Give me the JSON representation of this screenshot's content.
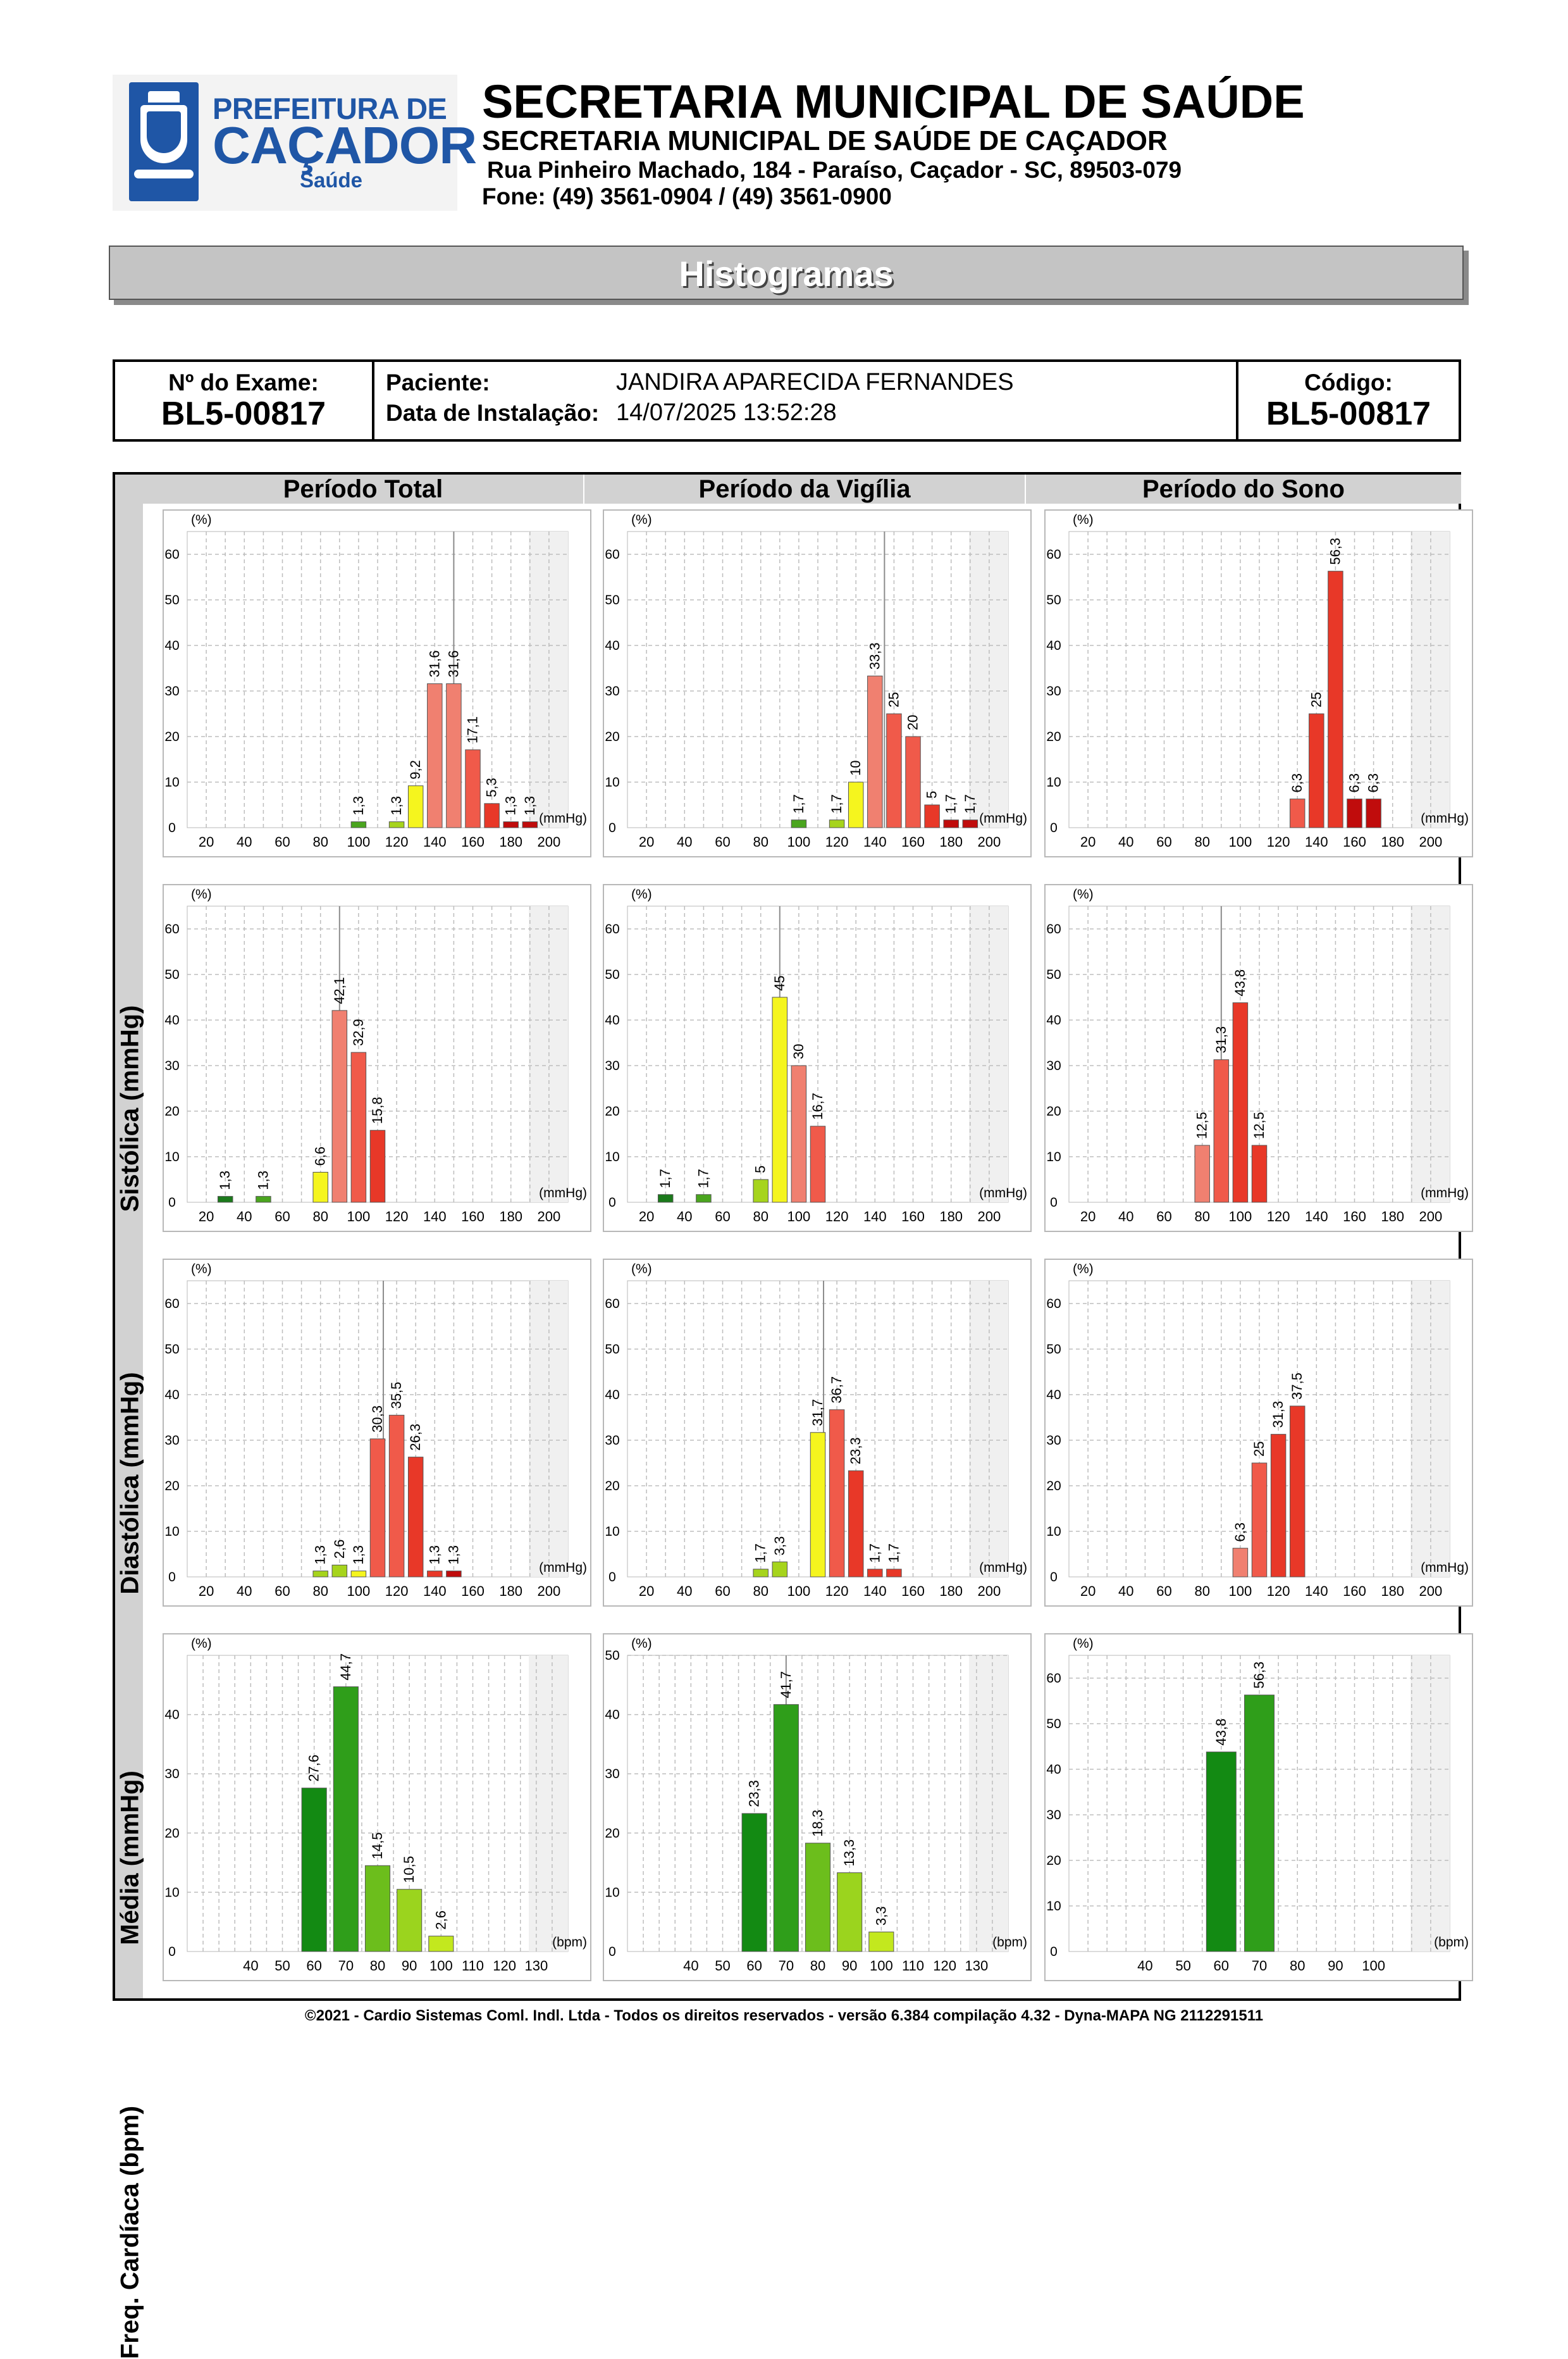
{
  "header": {
    "logo": {
      "line1": "PREFEITURA DE",
      "line2": "CAÇADOR",
      "line3": "Saúde"
    },
    "title": "SECRETARIA MUNICIPAL DE SAÚDE",
    "subtitle": "SECRETARIA MUNICIPAL DE SAÚDE DE CAÇADOR",
    "address": "Rua Pinheiro Machado, 184 - Paraíso, Caçador - SC, 89503-079",
    "phone": "Fone: (49) 3561-0904  / (49) 3561-0900"
  },
  "banner": "Histogramas",
  "exam": {
    "exam_label": "Nº do Exame:",
    "exam_number": "BL5-00817",
    "patient_label": "Paciente:",
    "patient_name": "JANDIRA APARECIDA FERNANDES",
    "install_label": "Data de Instalação:",
    "install_date": "14/07/2025 13:52:28",
    "code_label": "Código:",
    "code": "BL5-00817"
  },
  "periods": [
    "Período Total",
    "Período da Vigília",
    "Período do Sono"
  ],
  "rows": [
    "Sistólica (mmHg)",
    "Diastólica (mmHg)",
    "Média (mmHg)",
    "Freq. Cardíaca (bpm)"
  ],
  "footer": "©2021 - Cardio Sistemas Coml. Indl. Ltda - Todos os direitos reservados - versão 6.384 compilação 4.32 - Dyna-MAPA NG 2112291511",
  "colors": {
    "dark_green": "#1b7a1b",
    "green": "#4aa51e",
    "yellow_green": "#a6d41c",
    "yellow": "#f5f51e",
    "salmon": "#f08070",
    "light_red": "#f05a4a",
    "red": "#e83828",
    "dark_red": "#c00c0c",
    "hr_dark": "#138a13",
    "hr_mid": "#2f9e1a",
    "hr_light": "#6cbe1c",
    "hr_lighter": "#9bd41e",
    "hr_pale": "#c3e81e"
  },
  "chart_data": [
    {
      "type": "bar",
      "title": "Período Total",
      "ylabel": "Sistólica (mmHg)",
      "y_unit": "(%)",
      "x_unit": "(mmHg)",
      "ylim": [
        0,
        65
      ],
      "yticks": [
        0,
        10,
        20,
        30,
        40,
        50,
        60
      ],
      "xticks": [
        20,
        40,
        60,
        80,
        100,
        120,
        140,
        160,
        180,
        200
      ],
      "xlim": [
        10,
        210
      ],
      "x": [
        100,
        120,
        130,
        140,
        150,
        160,
        170,
        180,
        190
      ],
      "values": [
        1.3,
        1.3,
        9.2,
        31.6,
        31.6,
        17.1,
        5.3,
        1.3,
        1.3
      ],
      "labels": [
        "1,3",
        "1,3",
        "9,2",
        "31,6",
        "31,6",
        "17,1",
        "5,3",
        "1,3",
        "1,3"
      ],
      "colors": [
        "green",
        "yellow_green",
        "yellow",
        "salmon",
        "salmon",
        "light_red",
        "red",
        "dark_red",
        "dark_red"
      ],
      "marker": 150
    },
    {
      "type": "bar",
      "title": "Período da Vigília",
      "ylabel": "Sistólica (mmHg)",
      "y_unit": "(%)",
      "x_unit": "(mmHg)",
      "ylim": [
        0,
        65
      ],
      "yticks": [
        0,
        10,
        20,
        30,
        40,
        50,
        60
      ],
      "xticks": [
        20,
        40,
        60,
        80,
        100,
        120,
        140,
        160,
        180,
        200
      ],
      "xlim": [
        10,
        210
      ],
      "x": [
        100,
        120,
        130,
        140,
        150,
        160,
        170,
        180,
        190
      ],
      "values": [
        1.7,
        1.7,
        10,
        33.3,
        25,
        20,
        5,
        1.7,
        1.7
      ],
      "labels": [
        "1,7",
        "1,7",
        "10",
        "33,3",
        "25",
        "20",
        "5",
        "1,7",
        "1,7"
      ],
      "colors": [
        "green",
        "yellow_green",
        "yellow",
        "salmon",
        "light_red",
        "light_red",
        "red",
        "dark_red",
        "dark_red"
      ],
      "marker": 145
    },
    {
      "type": "bar",
      "title": "Período do Sono",
      "ylabel": "Sistólica (mmHg)",
      "y_unit": "(%)",
      "x_unit": "(mmHg)",
      "ylim": [
        0,
        65
      ],
      "yticks": [
        0,
        10,
        20,
        30,
        40,
        50,
        60
      ],
      "xticks": [
        20,
        40,
        60,
        80,
        100,
        120,
        140,
        160,
        180,
        200
      ],
      "xlim": [
        10,
        210
      ],
      "x": [
        130,
        140,
        150,
        160,
        170
      ],
      "values": [
        6.3,
        25,
        56.3,
        6.3,
        6.3
      ],
      "labels": [
        "6,3",
        "25",
        "56,3",
        "6,3",
        "6,3"
      ],
      "colors": [
        "light_red",
        "red",
        "red",
        "dark_red",
        "dark_red"
      ],
      "marker": null
    },
    {
      "type": "bar",
      "title": "Período Total",
      "ylabel": "Diastólica (mmHg)",
      "y_unit": "(%)",
      "x_unit": "(mmHg)",
      "ylim": [
        0,
        65
      ],
      "yticks": [
        0,
        10,
        20,
        30,
        40,
        50,
        60
      ],
      "xticks": [
        20,
        40,
        60,
        80,
        100,
        120,
        140,
        160,
        180,
        200
      ],
      "xlim": [
        10,
        210
      ],
      "x": [
        30,
        50,
        80,
        90,
        100,
        110
      ],
      "values": [
        1.3,
        1.3,
        6.6,
        42.1,
        32.9,
        15.8
      ],
      "labels": [
        "1,3",
        "1,3",
        "6,6",
        "42,1",
        "32,9",
        "15,8"
      ],
      "colors": [
        "dark_green",
        "green",
        "yellow",
        "salmon",
        "light_red",
        "red"
      ],
      "marker": 90
    },
    {
      "type": "bar",
      "title": "Período da Vigília",
      "ylabel": "Diastólica (mmHg)",
      "y_unit": "(%)",
      "x_unit": "(mmHg)",
      "ylim": [
        0,
        65
      ],
      "yticks": [
        0,
        10,
        20,
        30,
        40,
        50,
        60
      ],
      "xticks": [
        20,
        40,
        60,
        80,
        100,
        120,
        140,
        160,
        180,
        200
      ],
      "xlim": [
        10,
        210
      ],
      "x": [
        30,
        50,
        80,
        90,
        100,
        110
      ],
      "values": [
        1.7,
        1.7,
        5,
        45,
        30,
        16.7
      ],
      "labels": [
        "1,7",
        "1,7",
        "5",
        "45",
        "30",
        "16,7"
      ],
      "colors": [
        "dark_green",
        "green",
        "yellow_green",
        "yellow",
        "salmon",
        "light_red"
      ],
      "marker": 90
    },
    {
      "type": "bar",
      "title": "Período do Sono",
      "ylabel": "Diastólica (mmHg)",
      "y_unit": "(%)",
      "x_unit": "(mmHg)",
      "ylim": [
        0,
        65
      ],
      "yticks": [
        0,
        10,
        20,
        30,
        40,
        50,
        60
      ],
      "xticks": [
        20,
        40,
        60,
        80,
        100,
        120,
        140,
        160,
        180,
        200
      ],
      "xlim": [
        10,
        210
      ],
      "x": [
        80,
        90,
        100,
        110
      ],
      "values": [
        12.5,
        31.3,
        43.8,
        12.5
      ],
      "labels": [
        "12,5",
        "31,3",
        "43,8",
        "12,5"
      ],
      "colors": [
        "salmon",
        "light_red",
        "red",
        "red"
      ],
      "marker": 90
    },
    {
      "type": "bar",
      "title": "Período Total",
      "ylabel": "Média (mmHg)",
      "y_unit": "(%)",
      "x_unit": "(mmHg)",
      "ylim": [
        0,
        65
      ],
      "yticks": [
        0,
        10,
        20,
        30,
        40,
        50,
        60
      ],
      "xticks": [
        20,
        40,
        60,
        80,
        100,
        120,
        140,
        160,
        180,
        200
      ],
      "xlim": [
        10,
        210
      ],
      "x": [
        80,
        90,
        100,
        110,
        120,
        130,
        140,
        150
      ],
      "values": [
        1.3,
        2.6,
        1.3,
        30.3,
        35.5,
        26.3,
        1.3,
        1.3
      ],
      "labels": [
        "1,3",
        "2,6",
        "1,3",
        "30,3",
        "35,5",
        "26,3",
        "1,3",
        "1,3"
      ],
      "colors": [
        "yellow_green",
        "yellow_green",
        "yellow",
        "light_red",
        "light_red",
        "red",
        "red",
        "dark_red"
      ],
      "marker": 113
    },
    {
      "type": "bar",
      "title": "Período da Vigília",
      "ylabel": "Média (mmHg)",
      "y_unit": "(%)",
      "x_unit": "(mmHg)",
      "ylim": [
        0,
        65
      ],
      "yticks": [
        0,
        10,
        20,
        30,
        40,
        50,
        60
      ],
      "xticks": [
        20,
        40,
        60,
        80,
        100,
        120,
        140,
        160,
        180,
        200
      ],
      "xlim": [
        10,
        210
      ],
      "x": [
        80,
        90,
        110,
        120,
        130,
        140,
        150
      ],
      "values": [
        1.7,
        3.3,
        31.7,
        36.7,
        23.3,
        1.7,
        1.7
      ],
      "labels": [
        "1,7",
        "3,3",
        "31,7",
        "36,7",
        "23,3",
        "1,7",
        "1,7"
      ],
      "colors": [
        "yellow_green",
        "yellow_green",
        "yellow",
        "light_red",
        "red",
        "red",
        "red"
      ],
      "marker": 113
    },
    {
      "type": "bar",
      "title": "Período do Sono",
      "ylabel": "Média (mmHg)",
      "y_unit": "(%)",
      "x_unit": "(mmHg)",
      "ylim": [
        0,
        65
      ],
      "yticks": [
        0,
        10,
        20,
        30,
        40,
        50,
        60
      ],
      "xticks": [
        20,
        40,
        60,
        80,
        100,
        120,
        140,
        160,
        180,
        200
      ],
      "xlim": [
        10,
        210
      ],
      "x": [
        100,
        110,
        120,
        130
      ],
      "values": [
        6.3,
        25,
        31.3,
        37.5
      ],
      "labels": [
        "6,3",
        "25",
        "31,3",
        "37,5"
      ],
      "colors": [
        "salmon",
        "light_red",
        "red",
        "red"
      ],
      "marker": null
    },
    {
      "type": "bar",
      "title": "Período Total",
      "ylabel": "Freq. Cardíaca (bpm)",
      "y_unit": "(%)",
      "x_unit": "(bpm)",
      "ylim": [
        0,
        50
      ],
      "yticks": [
        0,
        10,
        20,
        30,
        40
      ],
      "xticks": [
        40,
        50,
        60,
        70,
        80,
        90,
        100,
        110,
        120,
        130
      ],
      "xlim": [
        20,
        140
      ],
      "x": [
        60,
        70,
        80,
        90,
        100
      ],
      "values": [
        27.6,
        44.7,
        14.5,
        10.5,
        2.6
      ],
      "labels": [
        "27,6",
        "44,7",
        "14,5",
        "10,5",
        "2,6"
      ],
      "colors": [
        "hr_dark",
        "hr_mid",
        "hr_light",
        "hr_lighter",
        "hr_pale"
      ],
      "marker": null
    },
    {
      "type": "bar",
      "title": "Período da Vigília",
      "ylabel": "Freq. Cardíaca (bpm)",
      "y_unit": "(%)",
      "x_unit": "(bpm)",
      "ylim": [
        0,
        50
      ],
      "yticks": [
        0,
        10,
        20,
        30,
        40,
        50
      ],
      "xticks": [
        40,
        50,
        60,
        70,
        80,
        90,
        100,
        110,
        120,
        130
      ],
      "xlim": [
        20,
        140
      ],
      "x": [
        60,
        70,
        80,
        90,
        100
      ],
      "values": [
        23.3,
        41.7,
        18.3,
        13.3,
        3.3
      ],
      "labels": [
        "23,3",
        "41,7",
        "18,3",
        "13,3",
        "3,3"
      ],
      "colors": [
        "hr_dark",
        "hr_mid",
        "hr_light",
        "hr_lighter",
        "hr_pale"
      ],
      "marker": 70
    },
    {
      "type": "bar",
      "title": "Período do Sono",
      "ylabel": "Freq. Cardíaca (bpm)",
      "y_unit": "(%)",
      "x_unit": "(bpm)",
      "ylim": [
        0,
        65
      ],
      "yticks": [
        0,
        10,
        20,
        30,
        40,
        50,
        60
      ],
      "xticks": [
        40,
        50,
        60,
        70,
        80,
        90,
        100
      ],
      "xlim": [
        20,
        120
      ],
      "x": [
        60,
        70
      ],
      "values": [
        43.8,
        56.3
      ],
      "labels": [
        "43,8",
        "56,3"
      ],
      "colors": [
        "hr_dark",
        "hr_mid"
      ],
      "marker": null
    }
  ]
}
